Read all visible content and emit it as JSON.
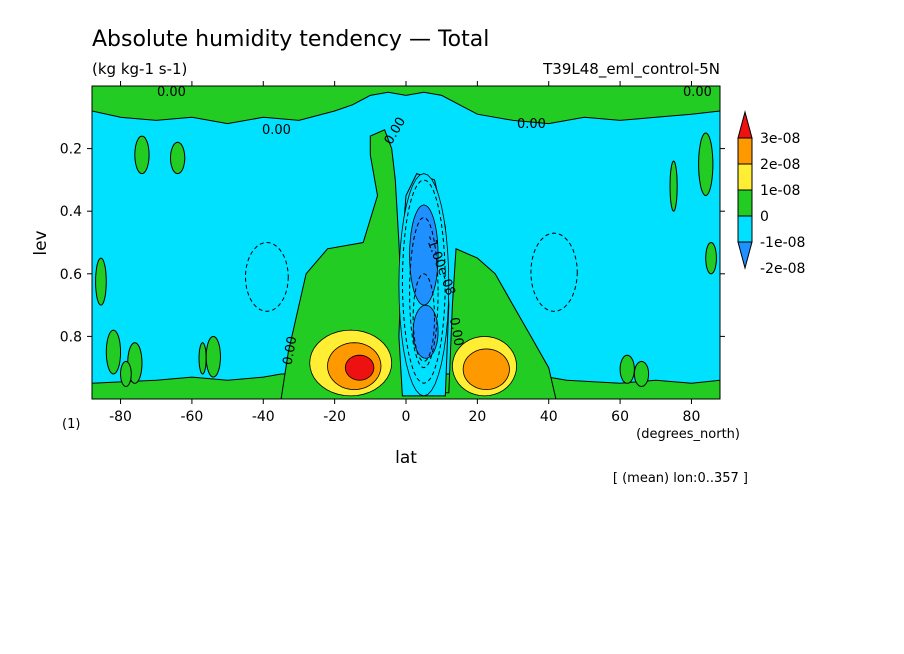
{
  "title": "Absolute humidity tendency — Total",
  "units": "(kg kg-1 s-1)",
  "run_label": "T39L48_eml_control-5N",
  "panel_label": "(1)",
  "footer_note": "[ (mean) lon:0..357 ]",
  "colors": {
    "c_m2": "#1e90ff",
    "c_m1": "#00e0ff",
    "c_0": "#22cc22",
    "c_1": "#ffee33",
    "c_2": "#ff9900",
    "c_3": "#ee1111",
    "outline": "#000000"
  },
  "chart_data": {
    "type": "heatmap",
    "title": "Absolute humidity tendency — Total",
    "units": "(kg kg-1 s-1)",
    "xlabel": "lat",
    "xunits": "(degrees_north)",
    "ylabel": "lev",
    "xlim": [
      -88,
      88
    ],
    "ylim": [
      0.0,
      1.0
    ],
    "y_inverted": true,
    "x_ticks": [
      -80,
      -60,
      -40,
      -20,
      0,
      20,
      40,
      60,
      80
    ],
    "x_tick_labels": [
      "-80",
      "-60",
      "-40",
      "-20",
      "0",
      "20",
      "40",
      "60",
      "80"
    ],
    "y_ticks": [
      0.2,
      0.4,
      0.6,
      0.8
    ],
    "y_tick_labels": [
      "0.2",
      "0.4",
      "0.6",
      "0.8"
    ],
    "colorbar": {
      "labels": [
        "3e-08",
        "2e-08",
        "1e-08",
        "0",
        "-1e-08",
        "-2e-08"
      ],
      "levels": [
        -2e-08,
        -1e-08,
        0,
        1e-08,
        2e-08,
        3e-08
      ]
    },
    "contour_labels": [
      "0.00",
      "0.00",
      "0.00",
      "0.00",
      "0.00",
      "0.00",
      "0.00",
      "-1.00e-08"
    ],
    "regions": [
      {
        "fill": "c_m1",
        "lat": [
          -88,
          88
        ],
        "lev": [
          0.08,
          1.0
        ]
      },
      {
        "fill": "c_0",
        "name": "upper band",
        "lat": [
          -88,
          88
        ],
        "lev": [
          0.0,
          0.12
        ]
      },
      {
        "fill": "c_0",
        "name": "lower band",
        "lat": [
          -88,
          88
        ],
        "lev": [
          0.94,
          1.0
        ]
      },
      {
        "fill": "c_0",
        "name": "central plume",
        "lat": [
          -35,
          40
        ],
        "lev": [
          0.15,
          1.0
        ]
      },
      {
        "fill": "c_m1",
        "name": "equatorial drying column",
        "lat": [
          -2,
          12
        ],
        "lev": [
          0.28,
          0.99
        ]
      },
      {
        "fill": "c_m2",
        "name": "core 1",
        "lat": [
          1,
          9
        ],
        "lev": [
          0.38,
          0.7
        ]
      },
      {
        "fill": "c_m2",
        "name": "core 2",
        "lat": [
          2,
          9
        ],
        "lev": [
          0.7,
          0.87
        ]
      },
      {
        "fill": "c_1",
        "name": "southern moistening",
        "lat": [
          -27,
          -4
        ],
        "lev": [
          0.78,
          0.99
        ]
      },
      {
        "fill": "c_2",
        "name": "southern moistening",
        "lat": [
          -22,
          -7
        ],
        "lev": [
          0.82,
          0.97
        ]
      },
      {
        "fill": "c_3",
        "name": "southern maximum",
        "lat": [
          -17,
          -9
        ],
        "lev": [
          0.86,
          0.94
        ]
      },
      {
        "fill": "c_1",
        "name": "northern moistening",
        "lat": [
          13,
          31
        ],
        "lev": [
          0.8,
          0.99
        ]
      },
      {
        "fill": "c_2",
        "name": "northern moistening",
        "lat": [
          16,
          29
        ],
        "lev": [
          0.84,
          0.97
        ]
      }
    ]
  }
}
